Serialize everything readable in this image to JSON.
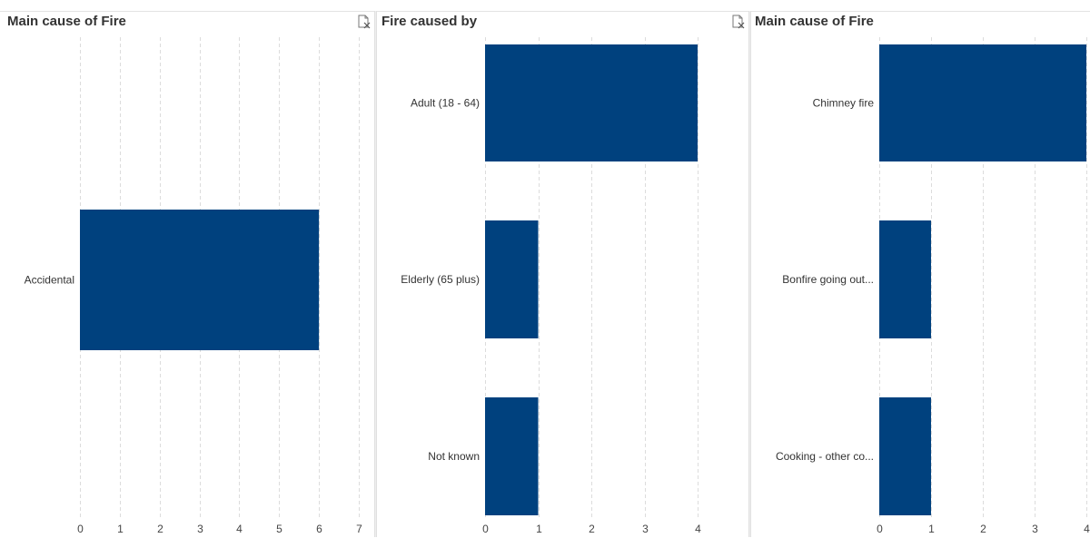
{
  "colors": {
    "bar": "#00417e",
    "grid": "#dcdcdc",
    "text": "#333333"
  },
  "icons": {
    "clear_filter": "clear-filter-icon"
  },
  "chart_data": [
    {
      "type": "bar",
      "orientation": "horizontal",
      "title": "Main cause of Fire",
      "categories": [
        "Accidental"
      ],
      "values": [
        6
      ],
      "xlim": [
        0,
        7
      ],
      "ticks": [
        "0",
        "1",
        "2",
        "3",
        "4",
        "5",
        "6",
        "7"
      ],
      "grid": true,
      "has_clear_icon": true
    },
    {
      "type": "bar",
      "orientation": "horizontal",
      "title": "Fire caused by",
      "categories": [
        "Adult (18 - 64)",
        "Elderly (65 plus)",
        "Not known"
      ],
      "values": [
        4,
        1,
        1
      ],
      "xlim": [
        0,
        4
      ],
      "ticks": [
        "0",
        "1",
        "2",
        "3",
        "4"
      ],
      "grid": true,
      "has_clear_icon": true
    },
    {
      "type": "bar",
      "orientation": "horizontal",
      "title": "Main cause of Fire",
      "categories": [
        "Chimney fire",
        "Bonfire going out...",
        "Cooking - other co..."
      ],
      "values": [
        4,
        1,
        1
      ],
      "xlim": [
        0,
        4
      ],
      "ticks": [
        "0",
        "1",
        "2",
        "3",
        "4"
      ],
      "grid": true,
      "has_clear_icon": false
    }
  ]
}
